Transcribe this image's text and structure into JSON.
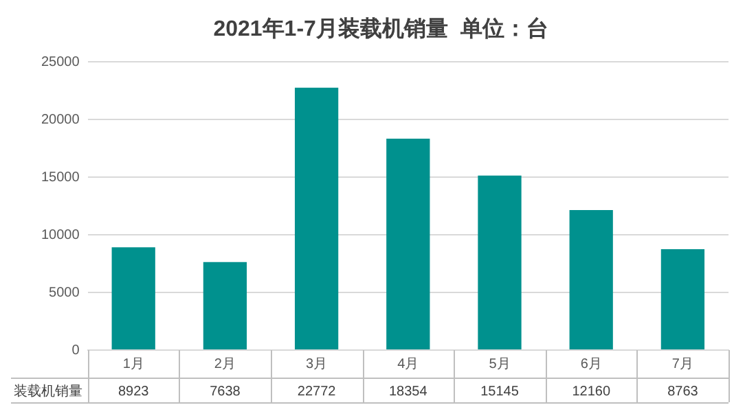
{
  "chart_data": {
    "type": "bar",
    "title": "2021年1-7月装载机销量  单位：台",
    "categories": [
      "1月",
      "2月",
      "3月",
      "4月",
      "5月",
      "6月",
      "7月"
    ],
    "series": [
      {
        "name": "装载机销量",
        "color": "#00918e",
        "values": [
          8923,
          7638,
          22772,
          18354,
          15145,
          12160,
          8763
        ]
      }
    ],
    "ylim": [
      0,
      25000
    ],
    "yticks": [
      0,
      5000,
      10000,
      15000,
      20000,
      25000
    ],
    "grid": "y",
    "legend": false,
    "data_labels": true
  }
}
